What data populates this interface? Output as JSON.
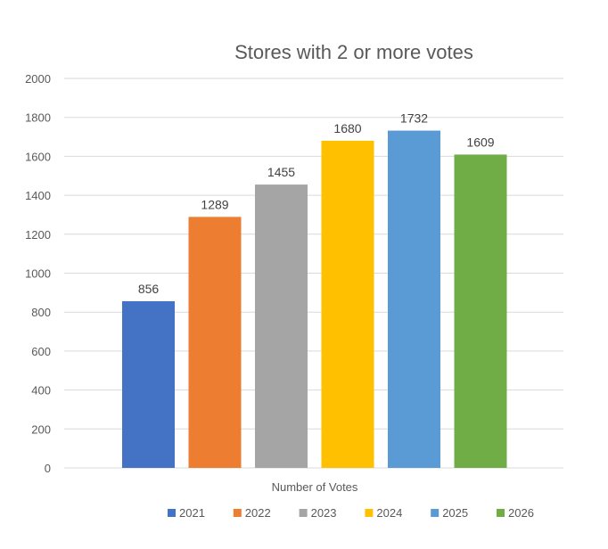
{
  "chart_data": {
    "type": "bar",
    "title": "Stores with 2 or more votes",
    "xlabel": "Number of Votes",
    "ylabel": "",
    "ylim": [
      0,
      2000
    ],
    "y_ticks": [
      0,
      200,
      400,
      600,
      800,
      1000,
      1200,
      1400,
      1600,
      1800,
      2000
    ],
    "grid": true,
    "legend_position": "bottom",
    "categories": [
      "Number of Votes"
    ],
    "series": [
      {
        "name": "2021",
        "values": [
          856
        ],
        "color": "#4472C4"
      },
      {
        "name": "2022",
        "values": [
          1289
        ],
        "color": "#ED7D31"
      },
      {
        "name": "2023",
        "values": [
          1455
        ],
        "color": "#A5A5A5"
      },
      {
        "name": "2024",
        "values": [
          1680
        ],
        "color": "#FFC000"
      },
      {
        "name": "2025",
        "values": [
          1732
        ],
        "color": "#5B9BD5"
      },
      {
        "name": "2026",
        "values": [
          1609
        ],
        "color": "#70AD47"
      }
    ]
  }
}
